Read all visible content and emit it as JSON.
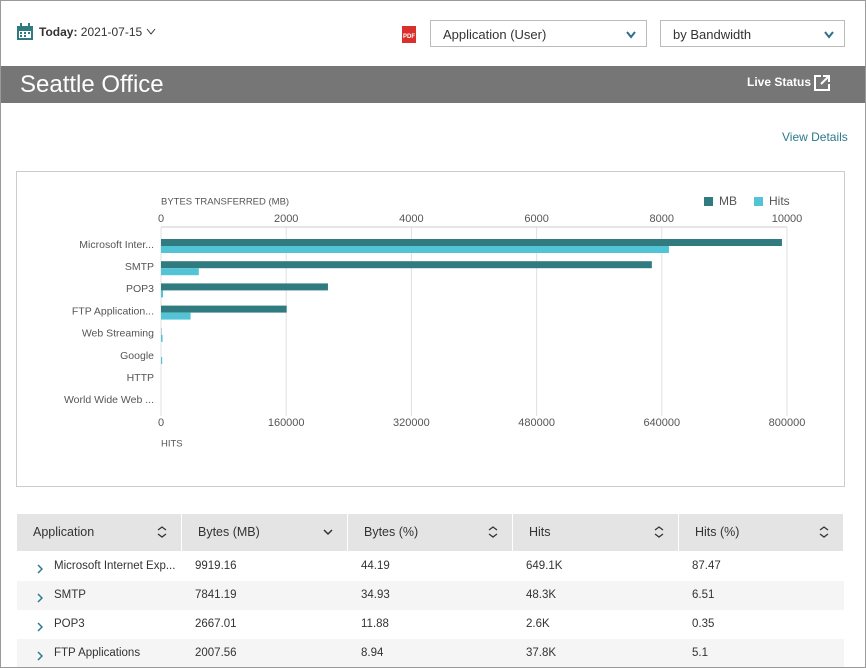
{
  "toolbar": {
    "date_label": "Today:",
    "date": "2021-07-15",
    "pdf": "PDF",
    "dropdowns": [
      "Application (User)",
      "by Bandwidth"
    ]
  },
  "header": {
    "title": "Seattle Office",
    "live_status": "Live Status"
  },
  "view_details": "View Details",
  "chart_data": {
    "type": "bar",
    "orientation": "horizontal",
    "x_label": "BYTES TRANSFERRED (MB)",
    "x2_label": "HITS",
    "categories": [
      "Microsoft Inter...",
      "SMTP",
      "POP3",
      "FTP Application...",
      "Web Streaming",
      "Google",
      "HTTP",
      "World Wide Web ..."
    ],
    "series": [
      {
        "name": "MB",
        "color": "#2f7b80",
        "values": [
          9919.16,
          7841.19,
          2667.01,
          2007.56,
          5,
          0,
          0,
          0
        ]
      },
      {
        "name": "Hits",
        "color": "#52c4d5",
        "axis": "x2",
        "values": [
          649100,
          48300,
          2600,
          37800,
          2000,
          1500,
          0,
          0
        ]
      }
    ],
    "xlim": [
      0,
      10000
    ],
    "xticks": [
      0,
      2000,
      4000,
      6000,
      8000,
      10000
    ],
    "x2lim": [
      0,
      800000
    ],
    "x2ticks": [
      0,
      160000,
      320000,
      480000,
      640000,
      800000
    ],
    "grid": true,
    "legend": "top-right"
  },
  "table": {
    "columns": [
      "Application",
      "Bytes (MB)",
      "Bytes (%)",
      "Hits",
      "Hits (%)"
    ],
    "rows": [
      [
        "Microsoft Internet Exp...",
        "9919.16",
        "44.19",
        "649.1K",
        "87.47"
      ],
      [
        "SMTP",
        "7841.19",
        "34.93",
        "48.3K",
        "6.51"
      ],
      [
        "POP3",
        "2667.01",
        "11.88",
        "2.6K",
        "0.35"
      ],
      [
        "FTP Applications",
        "2007.56",
        "8.94",
        "37.8K",
        "5.1"
      ]
    ]
  }
}
